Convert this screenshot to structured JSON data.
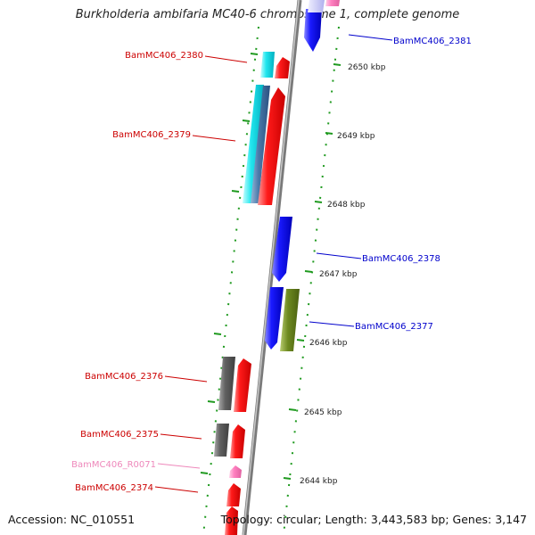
{
  "title": "Burkholderia ambifaria MC40-6 chromosome 1, complete genome",
  "footer": {
    "accession": "Accession: NC_010551",
    "summary": "Topology: circular; Length: 3,443,583 bp; Genes: 3,147"
  },
  "colors": {
    "backbone": "#808080",
    "tick": "#1f9a1f",
    "label_reverse": "#cc0000",
    "label_forward": "#0000cc",
    "label_rna": "#ee88bb"
  },
  "kbp_labels": [
    "2650 kbp",
    "2649 kbp",
    "2648 kbp",
    "2647 kbp",
    "2646 kbp",
    "2645 kbp",
    "2644 kbp"
  ],
  "gene_labels": [
    {
      "name": "BamMC406_2381",
      "strand": "forward"
    },
    {
      "name": "BamMC406_2380",
      "strand": "reverse"
    },
    {
      "name": "BamMC406_2379",
      "strand": "reverse"
    },
    {
      "name": "BamMC406_2378",
      "strand": "forward"
    },
    {
      "name": "BamMC406_2377",
      "strand": "forward"
    },
    {
      "name": "BamMC406_2376",
      "strand": "reverse"
    },
    {
      "name": "BamMC406_2375",
      "strand": "reverse"
    },
    {
      "name": "BamMC406_R0071",
      "strand": "rna"
    },
    {
      "name": "BamMC406_2374",
      "strand": "reverse"
    }
  ]
}
